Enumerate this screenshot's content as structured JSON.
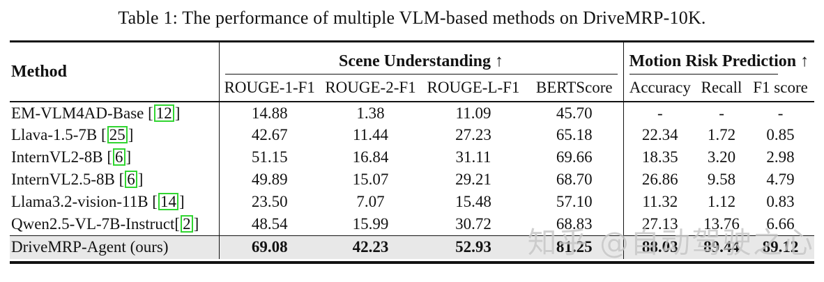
{
  "title": "Table 1: The performance of multiple VLM-based methods on DriveMRP-10K.",
  "table": {
    "method_header": "Method",
    "groups": [
      {
        "label": "Scene Understanding ↑",
        "columns": [
          "ROUGE-1-F1",
          "ROUGE-2-F1",
          "ROUGE-L-F1",
          "BERTScore"
        ]
      },
      {
        "label": "Motion Risk Prediction ↑",
        "columns": [
          "Accuracy",
          "Recall",
          "F1 score"
        ]
      }
    ],
    "rows": [
      {
        "method": "EM-VLM4AD-Base",
        "cite": "12",
        "cite_space": true,
        "bold": false,
        "highlight": false,
        "values": [
          "14.88",
          "1.38",
          "11.09",
          "45.70",
          "-",
          "-",
          "-"
        ]
      },
      {
        "method": "Llava-1.5-7B",
        "cite": "25",
        "cite_space": true,
        "bold": false,
        "highlight": false,
        "values": [
          "42.67",
          "11.44",
          "27.23",
          "65.18",
          "22.34",
          "1.72",
          "0.85"
        ]
      },
      {
        "method": "InternVL2-8B",
        "cite": "6",
        "cite_space": true,
        "bold": false,
        "highlight": false,
        "values": [
          "51.15",
          "16.84",
          "31.11",
          "69.66",
          "18.35",
          "3.20",
          "2.98"
        ]
      },
      {
        "method": "InternVL2.5-8B",
        "cite": "6",
        "cite_space": true,
        "bold": false,
        "highlight": false,
        "values": [
          "49.89",
          "15.07",
          "29.21",
          "68.70",
          "26.86",
          "9.58",
          "4.79"
        ]
      },
      {
        "method": "Llama3.2-vision-11B",
        "cite": "14",
        "cite_space": true,
        "bold": false,
        "highlight": false,
        "values": [
          "23.50",
          "7.07",
          "15.48",
          "57.10",
          "11.32",
          "1.12",
          "0.83"
        ]
      },
      {
        "method": "Qwen2.5-VL-7B-Instruct",
        "cite": "2",
        "cite_space": false,
        "bold": false,
        "highlight": false,
        "values": [
          "48.54",
          "15.99",
          "30.72",
          "68.83",
          "27.13",
          "13.76",
          "6.66"
        ]
      },
      {
        "method": "DriveMRP-Agent (ours)",
        "cite": null,
        "cite_space": false,
        "bold": true,
        "highlight": true,
        "values": [
          "69.08",
          "42.23",
          "52.93",
          "81.25",
          "88.03",
          "89.44",
          "89.12"
        ]
      }
    ]
  },
  "watermark": {
    "text": "知乎 @自动驾驶之心"
  },
  "colors": {
    "citation_box": "#30d530",
    "highlight_row": "#e8e8e8",
    "rule": "#121212",
    "watermark": "#c6c6c6"
  }
}
